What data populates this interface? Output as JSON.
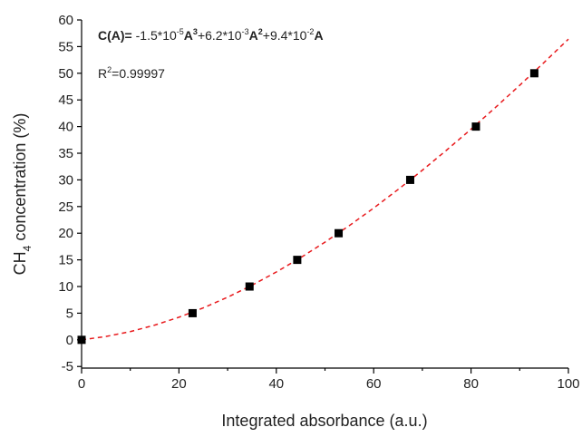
{
  "chart_data": {
    "type": "scatter",
    "xlabel": "Integrated absorbance (a.u.)",
    "ylabel": [
      "CH",
      "4",
      " concentration (%)"
    ],
    "equation": [
      "C(A)=",
      " -1.5*10",
      "-5",
      "A",
      "3",
      "+6.2*10",
      "-3",
      "A",
      "2",
      "+9.4*10",
      "-2",
      "A"
    ],
    "r_squared": [
      "R",
      "2",
      "=0.99997"
    ],
    "xlim": [
      0,
      100
    ],
    "xticks": [
      0,
      20,
      40,
      60,
      80,
      100
    ],
    "ylim": [
      -5.3,
      60
    ],
    "yticks": [
      -5,
      0,
      5,
      10,
      15,
      20,
      25,
      30,
      35,
      40,
      45,
      50,
      55,
      60
    ],
    "series": [
      {
        "type": "scatter",
        "color": "#000000",
        "x": [
          0,
          22.8,
          34.5,
          44.3,
          52.8,
          67.5,
          81,
          93
        ],
        "values": [
          0,
          5,
          10,
          15,
          20,
          30,
          40,
          50
        ]
      },
      {
        "type": "line",
        "color": "#e8191c",
        "dashed": true,
        "x": [
          0,
          5,
          10,
          15,
          20,
          25,
          30,
          35,
          40,
          45,
          50,
          55,
          60,
          65,
          70,
          75,
          80,
          85,
          90,
          95,
          100
        ],
        "values": [
          0,
          0.623,
          1.545,
          2.754,
          4.24,
          5.991,
          7.995,
          10.242,
          12.72,
          15.418,
          18.325,
          21.429,
          24.72,
          28.186,
          31.815,
          35.597,
          39.52,
          43.573,
          47.745,
          52.024,
          56.4
        ]
      }
    ]
  }
}
